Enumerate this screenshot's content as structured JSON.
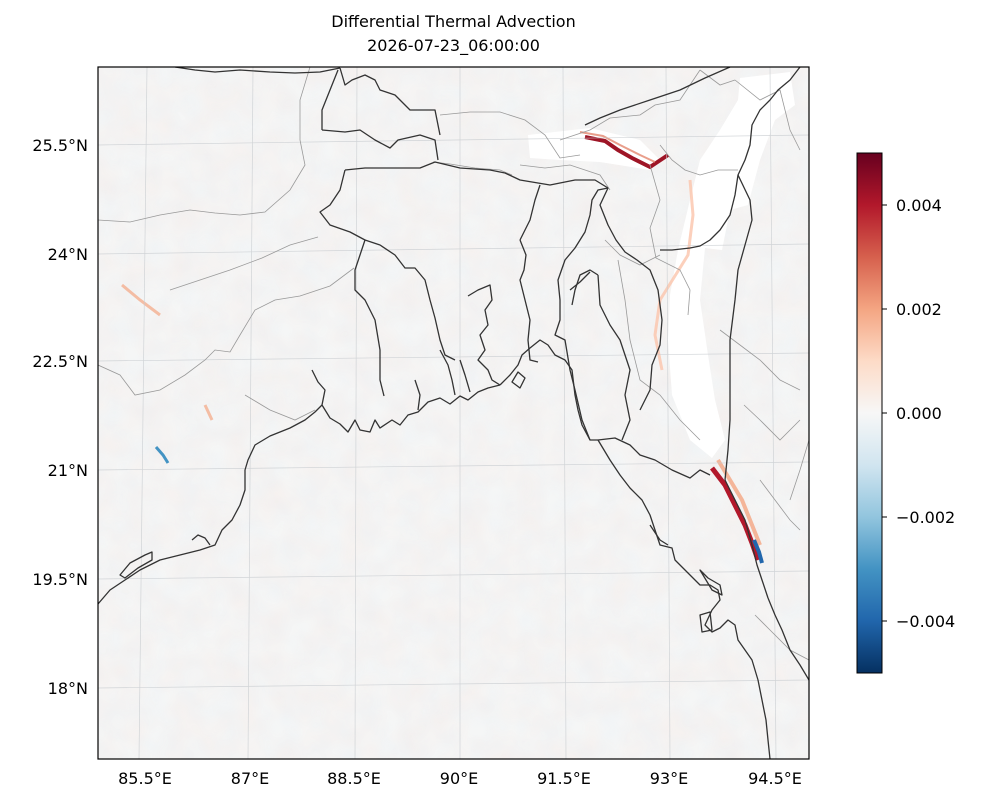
{
  "title_line1": "Differential Thermal Advection",
  "title_line2": "2026-07-23_06:00:00",
  "map": {
    "lat_labels": [
      "25.5°N",
      "24°N",
      "22.5°N",
      "21°N",
      "19.5°N",
      "18°N"
    ],
    "lon_labels": [
      "85.5°E",
      "87°E",
      "88.5°E",
      "90°E",
      "91.5°E",
      "93°E",
      "94.5°E"
    ],
    "lat_range": [
      16.9,
      26.4
    ],
    "lon_range": [
      84.9,
      94.9
    ]
  },
  "colorbar": {
    "colormap": "RdBu_r",
    "range": [
      -0.005,
      0.005
    ],
    "ticks": [
      {
        "value": 0.004,
        "label": "0.004"
      },
      {
        "value": 0.002,
        "label": "0.002"
      },
      {
        "value": 0.0,
        "label": "0.000"
      },
      {
        "value": -0.002,
        "label": "−0.002"
      },
      {
        "value": -0.004,
        "label": "−0.004"
      }
    ],
    "colors": [
      "#053061",
      "#2166ac",
      "#4393c3",
      "#92c5de",
      "#d1e5f0",
      "#f7f7f7",
      "#fddbc7",
      "#f4a582",
      "#d6604d",
      "#b2182b",
      "#67001f"
    ]
  }
}
